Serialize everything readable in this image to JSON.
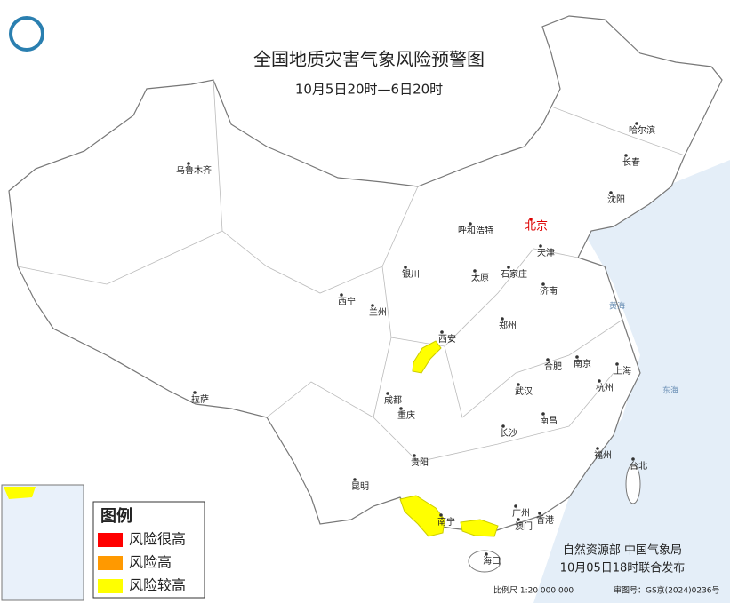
{
  "header": {
    "title": "全国地质灾害气象风险预警图",
    "subtitle": "10月5日20时—6日20时"
  },
  "cities": [
    "乌鲁木齐",
    "哈尔滨",
    "长春",
    "沈阳",
    "北京",
    "呼和浩特",
    "天津",
    "银川",
    "太原",
    "石家庄",
    "济南",
    "西宁",
    "兰州",
    "郑州",
    "西安",
    "合肥",
    "南京",
    "上海",
    "成都",
    "武汉",
    "杭州",
    "拉萨",
    "重庆",
    "南昌",
    "长沙",
    "福州",
    "贵阳",
    "台北",
    "昆明",
    "南宁",
    "广州",
    "澳门",
    "香港",
    "海口"
  ],
  "seas": [
    "黄海",
    "东海"
  ],
  "legend": {
    "title": "图例",
    "items": [
      {
        "label": "风险很高",
        "color": "#ff0000"
      },
      {
        "label": "风险高",
        "color": "#ff9900"
      },
      {
        "label": "风险较高",
        "color": "#ffff00"
      }
    ]
  },
  "footer": {
    "issuers": "自然资源部  中国气象局",
    "issued": "10月05日18时联合发布",
    "scale": "比例尺 1:20 000 000",
    "approval": "审图号：GS京(2024)0236号"
  }
}
